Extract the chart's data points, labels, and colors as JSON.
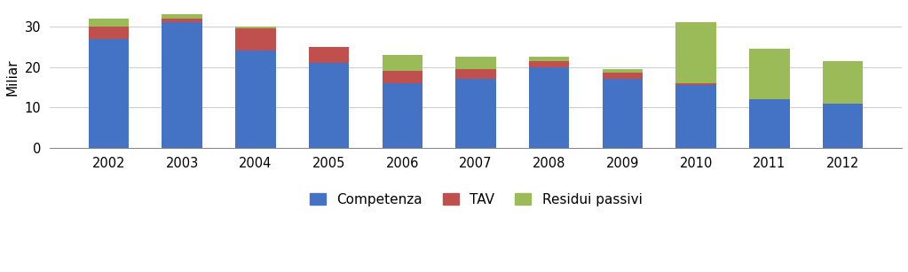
{
  "years": [
    2002,
    2003,
    2004,
    2005,
    2006,
    2007,
    2008,
    2009,
    2010,
    2011,
    2012
  ],
  "competenza": [
    27.0,
    31.0,
    24.0,
    21.0,
    16.0,
    17.0,
    20.0,
    17.0,
    15.5,
    12.0,
    11.0
  ],
  "tav": [
    3.0,
    1.0,
    5.5,
    4.0,
    3.0,
    2.5,
    1.5,
    1.5,
    0.5,
    0.0,
    0.0
  ],
  "residui": [
    2.0,
    1.0,
    0.5,
    0.0,
    4.0,
    3.0,
    1.0,
    1.0,
    15.0,
    12.5,
    10.5
  ],
  "colors": {
    "competenza": "#4472C4",
    "tav": "#C0504D",
    "residui": "#9BBB59"
  },
  "ylabel": "Miliar",
  "yticks": [
    0,
    10,
    20,
    30
  ],
  "ylim": [
    0,
    35
  ],
  "legend_labels": [
    "Competenza",
    "TAV",
    "Residui passivi"
  ],
  "background_color": "#FFFFFF",
  "bar_width": 0.55
}
